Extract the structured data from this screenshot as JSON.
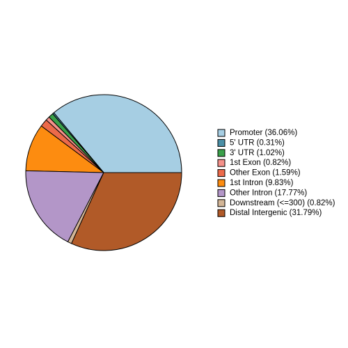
{
  "chart_data": {
    "type": "pie",
    "categories": [
      "Promoter (36.06%)",
      "5' UTR (0.31%)",
      "3' UTR (1.02%)",
      "1st Exon (0.82%)",
      "Other Exon (1.59%)",
      "1st Intron (9.83%)",
      "Other Intron (17.77%)",
      "Downstream (<=300) (0.82%)",
      "Distal Intergenic (31.79%)"
    ],
    "values": [
      36.06,
      0.31,
      1.02,
      0.82,
      1.59,
      9.83,
      17.77,
      0.82,
      31.79
    ],
    "colors": [
      "#a6cee3",
      "#4a8fa6",
      "#3aa04a",
      "#f5918a",
      "#ec6a4a",
      "#fd8c10",
      "#b396c8",
      "#d2b596",
      "#b15a28"
    ]
  }
}
